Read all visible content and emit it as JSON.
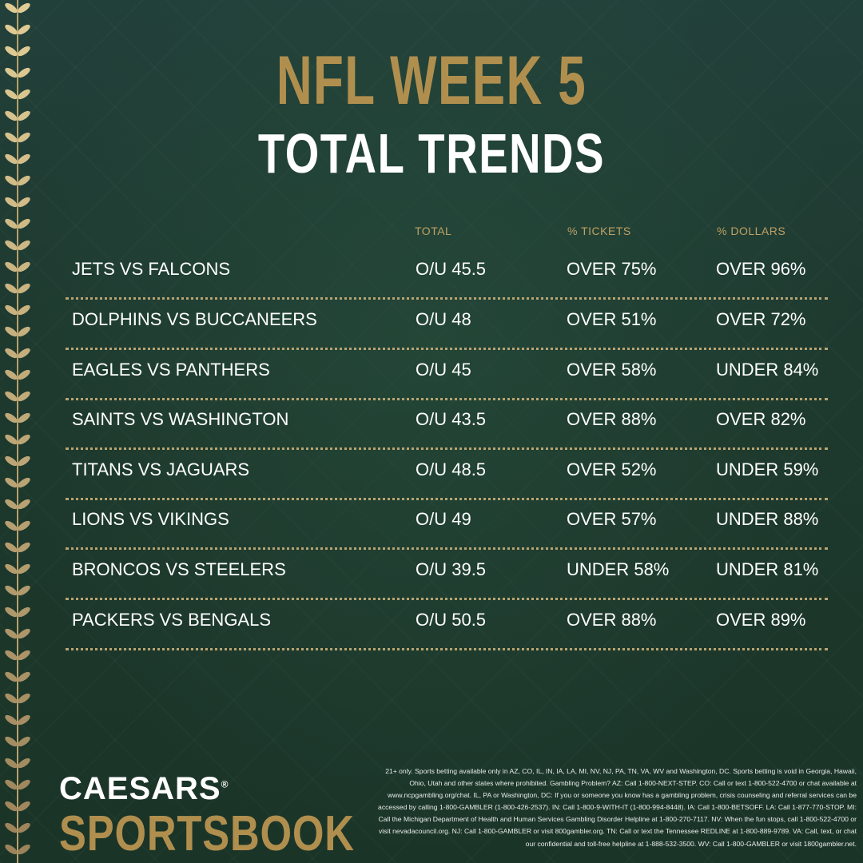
{
  "title_line1": "NFL WEEK 5",
  "title_line2": "TOTAL TRENDS",
  "columns": {
    "total": "TOTAL",
    "tickets": "% TICKETS",
    "dollars": "% DOLLARS"
  },
  "rows": [
    {
      "match": "JETS VS FALCONS",
      "total": "O/U 45.5",
      "tickets": "OVER 75%",
      "dollars": "OVER 96%"
    },
    {
      "match": "DOLPHINS VS BUCCANEERS",
      "total": "O/U 48",
      "tickets": "OVER 51%",
      "dollars": "OVER 72%"
    },
    {
      "match": "EAGLES VS PANTHERS",
      "total": "O/U 45",
      "tickets": "OVER 58%",
      "dollars": "UNDER 84%"
    },
    {
      "match": "SAINTS VS WASHINGTON",
      "total": "O/U 43.5",
      "tickets": "OVER 88%",
      "dollars": "OVER 82%"
    },
    {
      "match": "TITANS VS JAGUARS",
      "total": "O/U 48.5",
      "tickets": "OVER 52%",
      "dollars": "UNDER 59%"
    },
    {
      "match": "LIONS VS VIKINGS",
      "total": "O/U 49",
      "tickets": "OVER 57%",
      "dollars": "UNDER 88%"
    },
    {
      "match": "BRONCOS VS STEELERS",
      "total": "O/U 39.5",
      "tickets": "UNDER 58%",
      "dollars": "UNDER 81%"
    },
    {
      "match": "PACKERS VS BENGALS",
      "total": "O/U 50.5",
      "tickets": "OVER 88%",
      "dollars": "OVER 89%"
    }
  ],
  "logo": {
    "line1": "CAESARS",
    "mark": "®",
    "line2": "SPORTSBOOK"
  },
  "disclaimer": "21+ only. Sports betting available only in AZ, CO, IL, IN, IA, LA, MI, NV, NJ, PA, TN, VA, WV and Washington, DC. Sports betting is void in Georgia, Hawaii, Ohio, Utah and other states where prohibited. Gambling Problem? AZ: Call 1-800-NEXT-STEP. CO: Call or text 1-800-522-4700 or chat available at www.ncpgambling.org/chat. IL, PA or Washington, DC: If you or someone you know has a gambling problem, crisis counseling and referral services can be accessed by calling 1-800-GAMBLER (1-800-426-2537). IN: Call 1-800-9-WITH-IT (1-800-994-8448). IA: Call 1-800-BETSOFF. LA: Call 1-877-770-STOP. MI: Call the Michigan Department of Health and Human Services Gambling Disorder Helpline at 1-800-270-7117. NV: When the fun stops, call 1-800-522-4700 or visit nevadacouncil.org. NJ: Call 1-800-GAMBLER or visit 800gambler.org. TN: Call or text the Tennessee REDLINE at 1-800-889-9789. VA: Call, text, or chat our confidential and toll-free helpline at 1-888-532-3500. WV: Call 1-800-GAMBLER or visit 1800gambler.net.",
  "colors": {
    "background": "#1f3a2e",
    "gold": "#b08f4e",
    "text": "#ffffff"
  }
}
